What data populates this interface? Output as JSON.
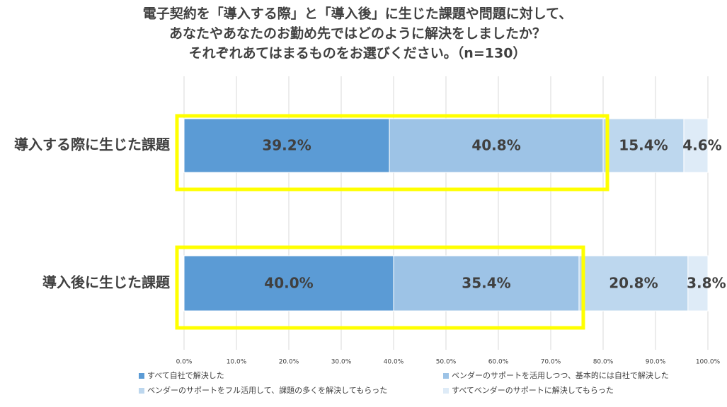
{
  "chart_data": {
    "type": "stacked-bar-horizontal",
    "title": [
      "電子契約を「導入する際」と「導入後」に生じた課題や問題に対して、",
      "あなたやあなたのお勤め先ではどのように解決をしましたか？",
      "それぞれあてはまるものをお選びください。（n=130）"
    ],
    "categories": [
      "導入する際に生じた課題",
      "導入後に生じた課題"
    ],
    "series": [
      {
        "name": "すべて自社で解決した",
        "color": "#5b9bd5",
        "values": [
          39.2,
          40.0
        ],
        "value_labels": [
          "39.2%",
          "40.0%"
        ]
      },
      {
        "name": "ベンダーのサポートを活用しつつ、基本的には自社で解決した",
        "color": "#9dc3e6",
        "values": [
          40.8,
          35.4
        ],
        "value_labels": [
          "40.8%",
          "35.4%"
        ]
      },
      {
        "name": "ベンダーのサポートをフル活用して、課題の多くを解決してもらった",
        "color": "#bdd7ee",
        "values": [
          15.4,
          20.8
        ],
        "value_labels": [
          "15.4%",
          "20.8%"
        ]
      },
      {
        "name": "すべてベンダーのサポートに解決してもらった",
        "color": "#deebf7",
        "values": [
          4.6,
          3.8
        ],
        "value_labels": [
          "4.6%",
          "3.8%"
        ]
      }
    ],
    "xlim": [
      0,
      100
    ],
    "xticks": [
      {
        "value": 0,
        "label": "0.0%"
      },
      {
        "value": 10,
        "label": "10.0%"
      },
      {
        "value": 20,
        "label": "20.0%"
      },
      {
        "value": 30,
        "label": "30.0%"
      },
      {
        "value": 40,
        "label": "40.0%"
      },
      {
        "value": 50,
        "label": "50.0%"
      },
      {
        "value": 60,
        "label": "60.0%"
      },
      {
        "value": 70,
        "label": "70.0%"
      },
      {
        "value": 80,
        "label": "80.0%"
      },
      {
        "value": 90,
        "label": "90.0%"
      },
      {
        "value": 100,
        "label": "100.0%"
      }
    ],
    "grid": true,
    "legend": "bottom"
  }
}
